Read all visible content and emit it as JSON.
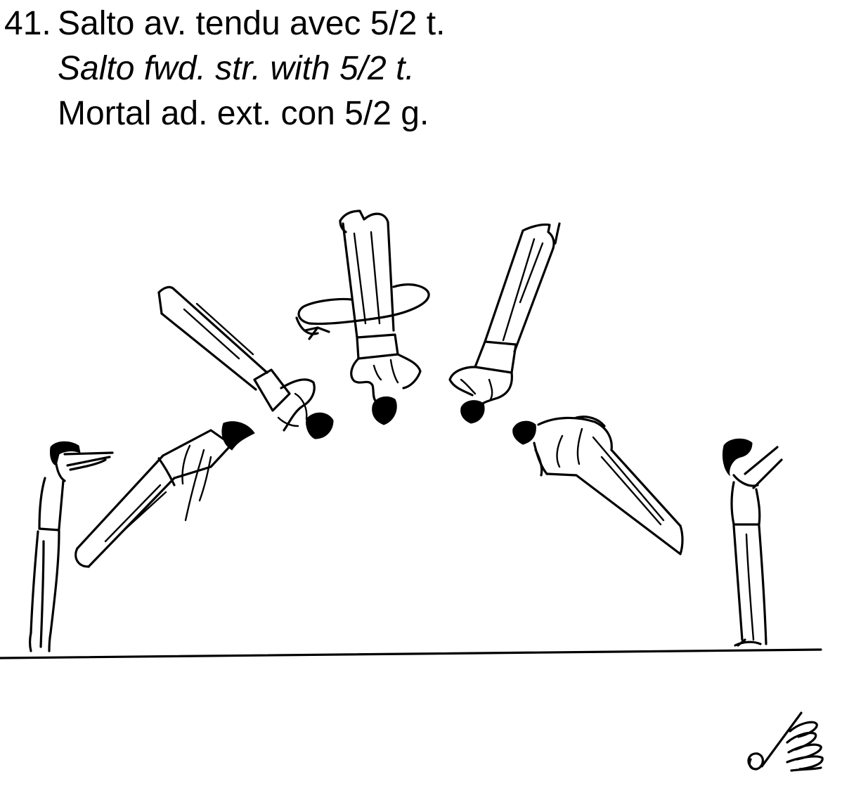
{
  "element": {
    "number": "41.",
    "name_fr": "Salto av. tendu avec 5/2 t.",
    "name_en": "Salto fwd. str. with 5/2 t.",
    "name_es": "Mortal ad. ext. con 5/2 g."
  },
  "figure": {
    "phases": [
      "takeoff-stand",
      "rising-layout",
      "inverted-layout-1",
      "handstand-twist",
      "inverted-layout-2",
      "descending-layout",
      "landing-stand"
    ],
    "twist_arrow": "rotation-arrow-icon",
    "symbol": "twist-symbol-icon"
  }
}
